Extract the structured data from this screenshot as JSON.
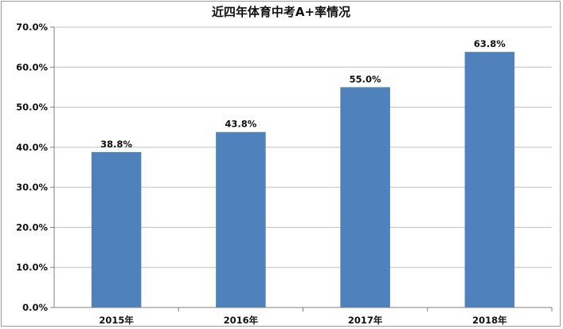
{
  "chart_data": {
    "type": "bar",
    "title": "近四年体育中考A+率情况",
    "categories": [
      "2015年",
      "2016年",
      "2017年",
      "2018年"
    ],
    "values": [
      38.8,
      43.8,
      55.0,
      63.8
    ],
    "data_labels": [
      "38.8%",
      "43.8%",
      "55.0%",
      "63.8%"
    ],
    "xlabel": "",
    "ylabel": "",
    "ylim": [
      0,
      70
    ],
    "y_ticks": [
      0,
      10,
      20,
      30,
      40,
      50,
      60,
      70
    ],
    "y_tick_labels": [
      "0.0%",
      "10.0%",
      "20.0%",
      "30.0%",
      "40.0%",
      "50.0%",
      "60.0%",
      "70.0%"
    ],
    "grid": true,
    "legend": "none",
    "bar_color": "#4f81bd",
    "grid_color": "#c0c0c0",
    "axis_color": "#808080"
  }
}
